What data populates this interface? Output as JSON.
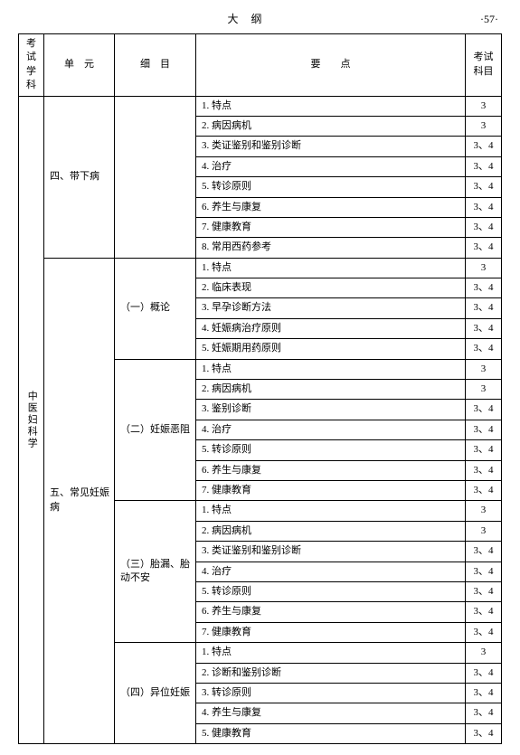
{
  "header": {
    "title": "大纲",
    "page": "·57·"
  },
  "cols": {
    "subject": "考试学科",
    "unit": "单　元",
    "sub": "细　目",
    "point": "要　　点",
    "subj2": "考试科目"
  },
  "subject": "中医妇科学",
  "units": [
    {
      "label": "四、带下病",
      "subs": [
        {
          "label": "",
          "rows": [
            {
              "p": "1. 特点",
              "s": "3"
            },
            {
              "p": "2. 病因病机",
              "s": "3"
            },
            {
              "p": "3. 类证鉴别和鉴别诊断",
              "s": "3、4"
            },
            {
              "p": "4. 治疗",
              "s": "3、4"
            },
            {
              "p": "5. 转诊原则",
              "s": "3、4"
            },
            {
              "p": "6. 养生与康复",
              "s": "3、4"
            },
            {
              "p": "7. 健康教育",
              "s": "3、4"
            },
            {
              "p": "8. 常用西药参考",
              "s": "3、4"
            }
          ]
        }
      ]
    },
    {
      "label": "五、常见妊娠病",
      "subs": [
        {
          "label": "（一）概论",
          "rows": [
            {
              "p": "1. 特点",
              "s": "3"
            },
            {
              "p": "2. 临床表现",
              "s": "3、4"
            },
            {
              "p": "3. 早孕诊断方法",
              "s": "3、4"
            },
            {
              "p": "4. 妊娠病治疗原则",
              "s": "3、4"
            },
            {
              "p": "5. 妊娠期用药原则",
              "s": "3、4"
            }
          ]
        },
        {
          "label": "（二）妊娠恶阻",
          "rows": [
            {
              "p": "1. 特点",
              "s": "3"
            },
            {
              "p": "2. 病因病机",
              "s": "3"
            },
            {
              "p": "3. 鉴别诊断",
              "s": "3、4"
            },
            {
              "p": "4. 治疗",
              "s": "3、4"
            },
            {
              "p": "5. 转诊原则",
              "s": "3、4"
            },
            {
              "p": "6. 养生与康复",
              "s": "3、4"
            },
            {
              "p": "7. 健康教育",
              "s": "3、4"
            }
          ]
        },
        {
          "label": "（三）胎漏、胎动不安",
          "rows": [
            {
              "p": "1. 特点",
              "s": "3"
            },
            {
              "p": "2. 病因病机",
              "s": "3"
            },
            {
              "p": "3. 类证鉴别和鉴别诊断",
              "s": "3、4"
            },
            {
              "p": "4. 治疗",
              "s": "3、4"
            },
            {
              "p": "5. 转诊原则",
              "s": "3、4"
            },
            {
              "p": "6. 养生与康复",
              "s": "3、4"
            },
            {
              "p": "7. 健康教育",
              "s": "3、4"
            }
          ]
        },
        {
          "label": "（四）异位妊娠",
          "rows": [
            {
              "p": "1. 特点",
              "s": "3"
            },
            {
              "p": "2. 诊断和鉴别诊断",
              "s": "3、4"
            },
            {
              "p": "3. 转诊原则",
              "s": "3、4"
            },
            {
              "p": "4. 养生与康复",
              "s": "3、4"
            },
            {
              "p": "5. 健康教育",
              "s": "3、4"
            }
          ]
        }
      ]
    }
  ]
}
